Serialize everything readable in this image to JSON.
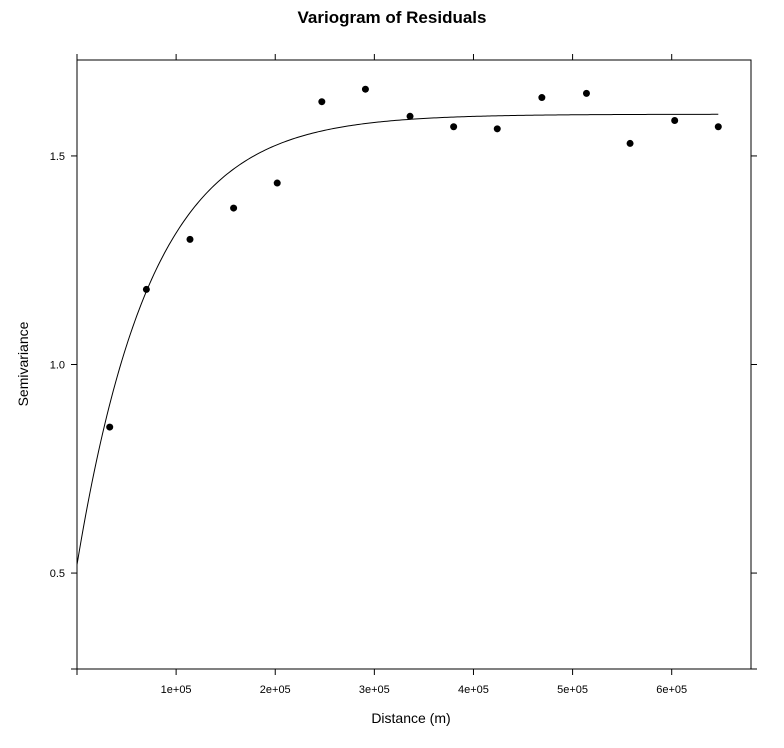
{
  "chart_data": {
    "type": "scatter",
    "title": "Variogram of Residuals",
    "xlabel": "Distance (m)",
    "ylabel": "Semivariance",
    "xlim": [
      0,
      680000
    ],
    "ylim": [
      0.27,
      1.73
    ],
    "x_ticks": [
      {
        "value": 100000,
        "label": "1e+05"
      },
      {
        "value": 200000,
        "label": "2e+05"
      },
      {
        "value": 300000,
        "label": "3e+05"
      },
      {
        "value": 400000,
        "label": "4e+05"
      },
      {
        "value": 500000,
        "label": "5e+05"
      },
      {
        "value": 600000,
        "label": "6e+05"
      }
    ],
    "y_ticks": [
      {
        "value": 0.5,
        "label": "0.5"
      },
      {
        "value": 1.0,
        "label": "1.0"
      },
      {
        "value": 1.5,
        "label": "1.5"
      }
    ],
    "points": [
      {
        "x": 33000,
        "y": 0.85
      },
      {
        "x": 70000,
        "y": 1.18
      },
      {
        "x": 114000,
        "y": 1.3
      },
      {
        "x": 158000,
        "y": 1.375
      },
      {
        "x": 202000,
        "y": 1.435
      },
      {
        "x": 247000,
        "y": 1.63
      },
      {
        "x": 291000,
        "y": 1.66
      },
      {
        "x": 336000,
        "y": 1.595
      },
      {
        "x": 380000,
        "y": 1.57
      },
      {
        "x": 424000,
        "y": 1.565
      },
      {
        "x": 469000,
        "y": 1.64
      },
      {
        "x": 514000,
        "y": 1.65
      },
      {
        "x": 558000,
        "y": 1.53
      },
      {
        "x": 603000,
        "y": 1.585
      },
      {
        "x": 647000,
        "y": 1.57
      }
    ],
    "fitted_curve": {
      "model": "exponential",
      "nugget": 0.52,
      "psill": 1.08,
      "range": 75000,
      "x_max": 647000
    },
    "grid": false,
    "legend": "none"
  }
}
